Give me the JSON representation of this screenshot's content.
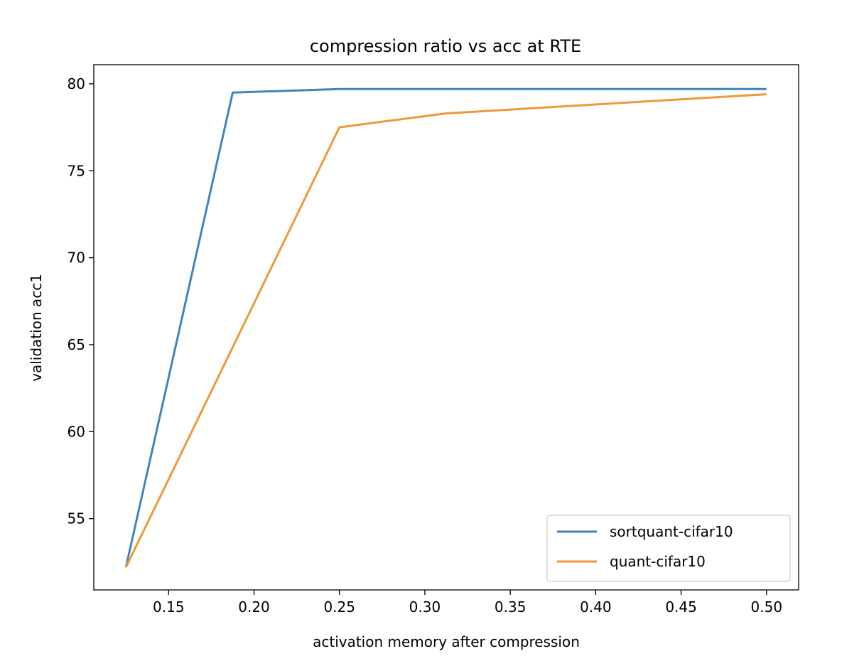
{
  "chart_data": {
    "type": "line",
    "title": "compression ratio vs acc at RTE",
    "xlabel": "activation memory after compression",
    "ylabel": "validation acc1",
    "xlim": [
      0.1062,
      0.5188
    ],
    "ylim": [
      50.9,
      81.1
    ],
    "xticks": [
      "0.15",
      "0.20",
      "0.25",
      "0.30",
      "0.35",
      "0.40",
      "0.45",
      "0.50"
    ],
    "yticks": [
      "55",
      "60",
      "65",
      "70",
      "75",
      "80"
    ],
    "grid": false,
    "legend_position": "lower-right",
    "series": [
      {
        "name": "sortquant-cifar10",
        "color": "#3d85c0",
        "x": [
          0.125,
          0.1875,
          0.25,
          0.3125,
          0.5
        ],
        "y": [
          52.2,
          79.5,
          79.7,
          79.7,
          79.7
        ]
      },
      {
        "name": "quant-cifar10",
        "color": "#f0983a",
        "x": [
          0.125,
          0.25,
          0.3125,
          0.5
        ],
        "y": [
          52.2,
          77.5,
          78.3,
          79.4
        ]
      }
    ]
  }
}
